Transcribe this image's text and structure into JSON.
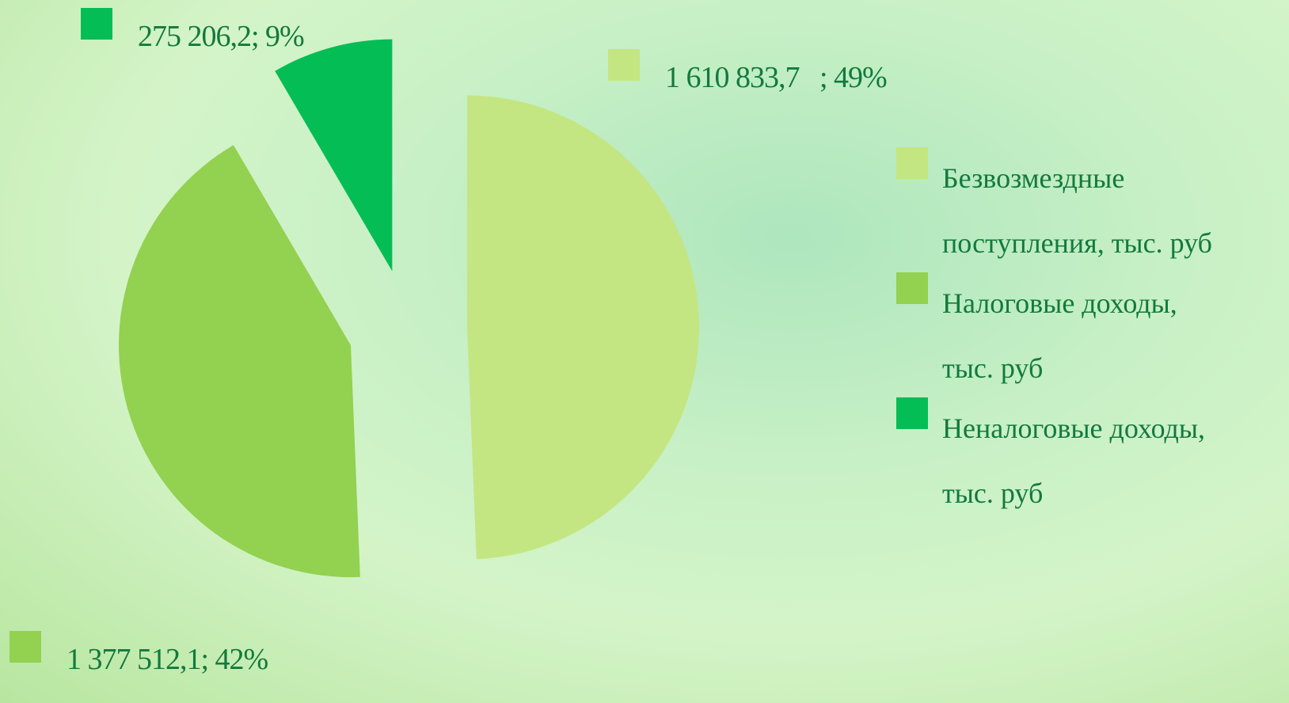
{
  "chart_data": {
    "type": "pie",
    "categories": [
      "Безвозмездные поступления, тыс. руб",
      "Налоговые доходы, тыс. руб",
      "Неналоговые доходы, тыс. руб"
    ],
    "values": [
      1610833.7,
      1377512.1,
      275206.2
    ],
    "value_labels": [
      "1 610 833,7   ; 49%",
      "1 377 512,1; 42%",
      "275 206,2; 9%"
    ],
    "colors": [
      "#c3e682",
      "#93d150",
      "#05bd55"
    ],
    "legend": "right"
  }
}
